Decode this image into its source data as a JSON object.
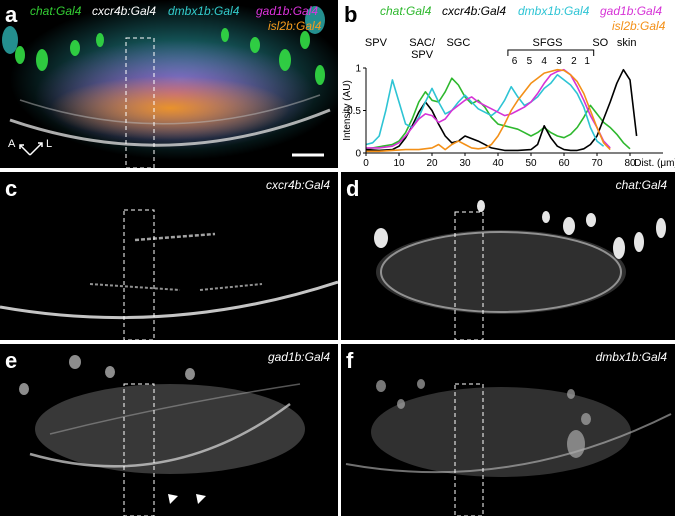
{
  "panels": {
    "a": {
      "label": "a",
      "lines": [
        {
          "name": "chat:Gal4",
          "color": "#33cc33"
        },
        {
          "name": "cxcr4b:Gal4",
          "color": "#ffffff"
        },
        {
          "name": "dmbx1b:Gal4",
          "color": "#33cccc"
        },
        {
          "name": "gad1b:Gal4",
          "color": "#dd33dd"
        },
        {
          "name": "isl2b:Gal4",
          "color": "#f59a1e"
        }
      ],
      "orientation": {
        "a": "A",
        "l": "L"
      }
    },
    "b": {
      "label": "b",
      "legend": [
        {
          "name": "chat:Gal4",
          "color": "#2eb82e"
        },
        {
          "name": "cxcr4b:Gal4",
          "color": "#000000"
        },
        {
          "name": "dmbx1b:Gal4",
          "color": "#2ec4d4"
        },
        {
          "name": "gad1b:Gal4",
          "color": "#d633d6"
        },
        {
          "name": "isl2b:Gal4",
          "color": "#f39018"
        }
      ]
    },
    "c": {
      "label": "c",
      "title": "cxcr4b:Gal4"
    },
    "d": {
      "label": "d",
      "title": "chat:Gal4"
    },
    "e": {
      "label": "e",
      "title": "gad1b:Gal4"
    },
    "f": {
      "label": "f",
      "title": "dmbx1b:Gal4"
    }
  },
  "chart_data": {
    "type": "line",
    "title": "",
    "xlabel": "Dist. (μm)",
    "ylabel": "Intensity (AU)",
    "xlim": [
      0,
      90
    ],
    "ylim": [
      0,
      1
    ],
    "xticks": [
      "0",
      "10",
      "20",
      "30",
      "40",
      "50",
      "60",
      "70",
      "80"
    ],
    "yticks": [
      "0",
      "0.5",
      "1"
    ],
    "grid": false,
    "legend_position": "top",
    "layer_labels": [
      {
        "text": "SPV",
        "x": 3
      },
      {
        "text": "SAC/",
        "x": 17
      },
      {
        "text": "SPV",
        "x": 17
      },
      {
        "text": "SGC",
        "x": 28
      },
      {
        "text": "SFGS",
        "x": 55
      },
      {
        "text": "SO",
        "x": 71
      },
      {
        "text": "skin",
        "x": 79
      },
      {
        "text": "6",
        "x": 45
      },
      {
        "text": "5",
        "x": 49.5
      },
      {
        "text": "4",
        "x": 54
      },
      {
        "text": "3",
        "x": 58.5
      },
      {
        "text": "2",
        "x": 63
      },
      {
        "text": "1",
        "x": 67
      }
    ],
    "series": [
      {
        "name": "chat:Gal4",
        "color": "#2eb82e",
        "x": [
          0,
          2,
          5,
          8,
          10,
          12,
          14,
          16,
          18,
          20,
          22,
          24,
          26,
          28,
          30,
          32,
          34,
          36,
          38,
          40,
          42,
          44,
          46,
          48,
          50,
          52,
          54,
          56,
          58,
          60,
          62,
          64,
          66,
          68,
          70,
          72,
          74,
          76,
          78,
          80
        ],
        "y": [
          0.05,
          0.06,
          0.08,
          0.1,
          0.14,
          0.24,
          0.4,
          0.6,
          0.72,
          0.62,
          0.6,
          0.72,
          0.88,
          0.8,
          0.66,
          0.58,
          0.62,
          0.54,
          0.42,
          0.34,
          0.32,
          0.3,
          0.28,
          0.24,
          0.2,
          0.24,
          0.3,
          0.24,
          0.2,
          0.18,
          0.22,
          0.3,
          0.42,
          0.56,
          0.46,
          0.36,
          0.3,
          0.22,
          0.12,
          0.05
        ]
      },
      {
        "name": "cxcr4b:Gal4",
        "color": "#000000",
        "x": [
          0,
          4,
          8,
          10,
          12,
          14,
          16,
          18,
          20,
          22,
          24,
          26,
          28,
          30,
          34,
          38,
          42,
          46,
          50,
          52,
          54,
          56,
          58,
          60,
          62,
          64,
          66,
          68,
          70,
          72,
          74,
          76,
          78,
          80,
          82
        ],
        "y": [
          0.04,
          0.03,
          0.04,
          0.08,
          0.18,
          0.32,
          0.48,
          0.6,
          0.5,
          0.34,
          0.2,
          0.12,
          0.14,
          0.2,
          0.14,
          0.06,
          0.03,
          0.03,
          0.04,
          0.1,
          0.32,
          0.18,
          0.08,
          0.04,
          0.03,
          0.03,
          0.05,
          0.1,
          0.2,
          0.4,
          0.6,
          0.82,
          0.98,
          0.86,
          0.2
        ]
      },
      {
        "name": "dmbx1b:Gal4",
        "color": "#2ec4d4",
        "x": [
          0,
          2,
          4,
          6,
          8,
          10,
          12,
          14,
          16,
          18,
          20,
          22,
          24,
          26,
          28,
          30,
          32,
          34,
          36,
          38,
          40,
          42,
          44,
          46,
          48,
          50,
          52,
          54,
          56,
          58,
          60,
          62,
          64,
          66,
          68,
          70,
          72
        ],
        "y": [
          0.1,
          0.12,
          0.2,
          0.5,
          0.86,
          0.6,
          0.34,
          0.3,
          0.42,
          0.6,
          0.76,
          0.6,
          0.46,
          0.5,
          0.6,
          0.68,
          0.6,
          0.52,
          0.48,
          0.44,
          0.5,
          0.62,
          0.78,
          0.66,
          0.56,
          0.6,
          0.66,
          0.76,
          0.82,
          0.92,
          0.86,
          0.8,
          0.7,
          0.54,
          0.3,
          0.14,
          0.08
        ]
      },
      {
        "name": "gad1b:Gal4",
        "color": "#d633d6",
        "x": [
          0,
          4,
          8,
          10,
          12,
          14,
          16,
          18,
          20,
          22,
          24,
          26,
          28,
          30,
          32,
          34,
          36,
          38,
          40,
          42,
          44,
          46,
          48,
          50,
          52,
          54,
          56,
          58,
          60,
          62,
          64,
          66,
          68,
          70,
          72,
          74
        ],
        "y": [
          0.06,
          0.06,
          0.08,
          0.12,
          0.2,
          0.3,
          0.4,
          0.46,
          0.44,
          0.36,
          0.4,
          0.5,
          0.56,
          0.62,
          0.66,
          0.6,
          0.56,
          0.52,
          0.48,
          0.44,
          0.46,
          0.5,
          0.54,
          0.6,
          0.7,
          0.82,
          0.92,
          0.96,
          0.98,
          0.92,
          0.78,
          0.62,
          0.44,
          0.3,
          0.14,
          0.06
        ]
      },
      {
        "name": "isl2b:Gal4",
        "color": "#f39018",
        "x": [
          0,
          4,
          8,
          12,
          16,
          20,
          22,
          24,
          26,
          28,
          30,
          32,
          34,
          36,
          38,
          40,
          42,
          44,
          46,
          48,
          50,
          52,
          54,
          56,
          58,
          60,
          62,
          64,
          66,
          68,
          70,
          72,
          74
        ],
        "y": [
          0.02,
          0.02,
          0.03,
          0.04,
          0.04,
          0.06,
          0.1,
          0.04,
          0.1,
          0.14,
          0.1,
          0.06,
          0.05,
          0.06,
          0.1,
          0.2,
          0.34,
          0.5,
          0.62,
          0.72,
          0.82,
          0.88,
          0.94,
          0.96,
          0.98,
          0.97,
          0.92,
          0.84,
          0.7,
          0.5,
          0.3,
          0.12,
          0.04
        ]
      }
    ]
  }
}
